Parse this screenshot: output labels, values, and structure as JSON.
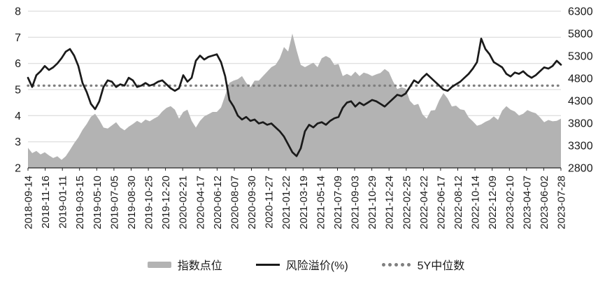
{
  "chart_data": {
    "type": "area+line",
    "title": "",
    "legend_position": "bottom",
    "grid": true,
    "x_labels": [
      "2018-09-14",
      "2018-11-16",
      "2019-01-11",
      "2019-03-15",
      "2019-05-10",
      "2019-07-05",
      "2019-08-30",
      "2019-10-25",
      "2019-12-20",
      "2020-02-21",
      "2020-04-17",
      "2020-06-12",
      "2020-08-07",
      "2020-09-30",
      "2020-11-27",
      "2021-01-22",
      "2021-03-19",
      "2021-05-14",
      "2021-07-09",
      "2021-09-03",
      "2021-10-29",
      "2021-12-24",
      "2022-02-25",
      "2022-04-22",
      "2022-06-17",
      "2022-08-12",
      "2022-10-14",
      "2022-12-09",
      "2023-02-10",
      "2023-04-07",
      "2023-06-02",
      "2023-07-28"
    ],
    "left_axis": {
      "min": 2,
      "max": 8,
      "ticks": [
        8,
        7,
        6,
        5,
        4,
        3,
        2
      ]
    },
    "right_axis": {
      "min": 2800,
      "max": 6300,
      "ticks": [
        6300,
        5800,
        5300,
        4800,
        4300,
        3800,
        3300,
        2800
      ]
    },
    "series": [
      {
        "name": "指数点位",
        "type": "area",
        "axis": "right",
        "color": "#b3b3b3",
        "values": [
          3250,
          3130,
          3180,
          3100,
          3150,
          3080,
          3020,
          3060,
          2980,
          3060,
          3200,
          3350,
          3480,
          3650,
          3780,
          3940,
          4010,
          3870,
          3700,
          3680,
          3750,
          3820,
          3700,
          3640,
          3720,
          3780,
          3850,
          3800,
          3880,
          3840,
          3900,
          3950,
          4060,
          4140,
          4180,
          4100,
          3900,
          4050,
          4100,
          3850,
          3700,
          3850,
          3950,
          4000,
          4050,
          4050,
          4150,
          4420,
          4700,
          4750,
          4780,
          4850,
          4700,
          4600,
          4750,
          4750,
          4850,
          4950,
          5050,
          5100,
          5250,
          5500,
          5400,
          5800,
          5430,
          5100,
          5050,
          5100,
          5150,
          5050,
          5250,
          5300,
          5250,
          5100,
          5120,
          4850,
          4900,
          4850,
          4950,
          4850,
          4930,
          4900,
          4850,
          4890,
          4920,
          5010,
          4940,
          4730,
          4560,
          4600,
          4570,
          4300,
          4200,
          4230,
          4000,
          3900,
          4080,
          4090,
          4310,
          4470,
          4350,
          4170,
          4190,
          4110,
          4090,
          3930,
          3840,
          3740,
          3770,
          3830,
          3870,
          3950,
          3870,
          4080,
          4180,
          4100,
          4060,
          3970,
          4010,
          4090,
          4050,
          4020,
          3930,
          3820,
          3870,
          3840,
          3850,
          3900
        ]
      },
      {
        "name": "风险溢价(%)",
        "type": "line",
        "axis": "left",
        "color": "#1a1a1a",
        "values": [
          5.45,
          5.1,
          5.55,
          5.7,
          5.9,
          5.75,
          5.85,
          6.0,
          6.2,
          6.45,
          6.55,
          6.3,
          5.9,
          5.25,
          4.9,
          4.45,
          4.25,
          4.55,
          5.1,
          5.35,
          5.3,
          5.1,
          5.2,
          5.15,
          5.45,
          5.35,
          5.1,
          5.15,
          5.25,
          5.15,
          5.2,
          5.3,
          5.35,
          5.2,
          5.05,
          4.95,
          5.05,
          5.55,
          5.3,
          5.45,
          6.1,
          6.3,
          6.15,
          6.25,
          6.3,
          6.35,
          6.05,
          5.5,
          4.6,
          4.35,
          4.0,
          3.85,
          3.95,
          3.8,
          3.85,
          3.7,
          3.75,
          3.65,
          3.7,
          3.55,
          3.4,
          3.2,
          2.9,
          2.6,
          2.45,
          2.75,
          3.4,
          3.65,
          3.55,
          3.7,
          3.75,
          3.65,
          3.8,
          3.9,
          3.95,
          4.3,
          4.5,
          4.55,
          4.35,
          4.5,
          4.4,
          4.5,
          4.6,
          4.55,
          4.45,
          4.35,
          4.5,
          4.65,
          4.8,
          4.75,
          4.85,
          5.1,
          5.35,
          5.25,
          5.45,
          5.6,
          5.45,
          5.3,
          5.15,
          5.0,
          4.95,
          5.1,
          5.2,
          5.3,
          5.45,
          5.6,
          5.8,
          6.05,
          6.95,
          6.55,
          6.35,
          6.05,
          5.95,
          5.85,
          5.6,
          5.5,
          5.65,
          5.6,
          5.7,
          5.55,
          5.45,
          5.55,
          5.7,
          5.85,
          5.8,
          5.9,
          6.1,
          5.95
        ]
      },
      {
        "name": "5Y中位数",
        "type": "hline",
        "axis": "left",
        "color": "#7f7f7f",
        "value": 5.15
      }
    ]
  }
}
